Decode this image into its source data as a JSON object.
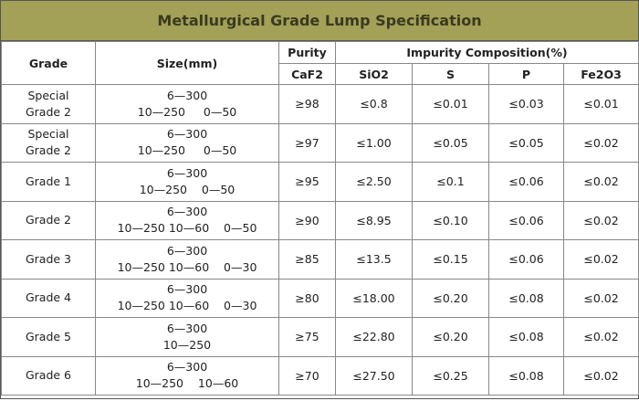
{
  "title": "Metallurgical Grade Lump Specification",
  "header": {
    "grade": "Grade",
    "size": "Size(mm)",
    "purity": "Purity",
    "impurity": "Impurity Composition(%)",
    "columns": [
      "CaF2",
      "SiO2",
      "S",
      "P",
      "Fe2O3"
    ]
  },
  "rows": [
    {
      "grade": "Special Grade 2",
      "size": [
        "6—300",
        "10—250     0—50"
      ],
      "values": [
        "≥98",
        "≤0.8",
        "≤0.01",
        "≤0.03",
        "≤0.01"
      ]
    },
    {
      "grade": "Special Grade 2",
      "size": [
        "6—300",
        "10—250     0—50"
      ],
      "values": [
        "≥97",
        "≤1.00",
        "≤0.05",
        "≤0.05",
        "≤0.02"
      ]
    },
    {
      "grade": "Grade 1",
      "size": [
        "6—300",
        "10—250    0—50"
      ],
      "values": [
        "≥95",
        "≤2.50",
        "≤0.1",
        "≤0.06",
        "≤0.02"
      ]
    },
    {
      "grade": "Grade 2",
      "size": [
        "6—300",
        "10—250 10—60    0—50"
      ],
      "values": [
        "≥90",
        "≤8.95",
        "≤0.10",
        "≤0.06",
        "≤0.02"
      ]
    },
    {
      "grade": "Grade 3",
      "size": [
        "6—300",
        "10—250 10—60    0—30"
      ],
      "values": [
        "≥85",
        "≤13.5",
        "≤0.15",
        "≤0.06",
        "≤0.02"
      ]
    },
    {
      "grade": "Grade 4",
      "size": [
        "6—300",
        "10—250 10—60    0—30"
      ],
      "values": [
        "≥80",
        "≤18.00",
        "≤0.20",
        "≤0.08",
        "≤0.02"
      ]
    },
    {
      "grade": "Grade 5",
      "size": [
        "6—300",
        "10—250"
      ],
      "values": [
        "≥75",
        "≤22.80",
        "≤0.20",
        "≤0.08",
        "≤0.02"
      ]
    },
    {
      "grade": "Grade 6",
      "size": [
        "6—300",
        "10—250    10—60"
      ],
      "values": [
        "≥70",
        "≤27.50",
        "≤0.25",
        "≤0.08",
        "≤0.02"
      ]
    }
  ]
}
